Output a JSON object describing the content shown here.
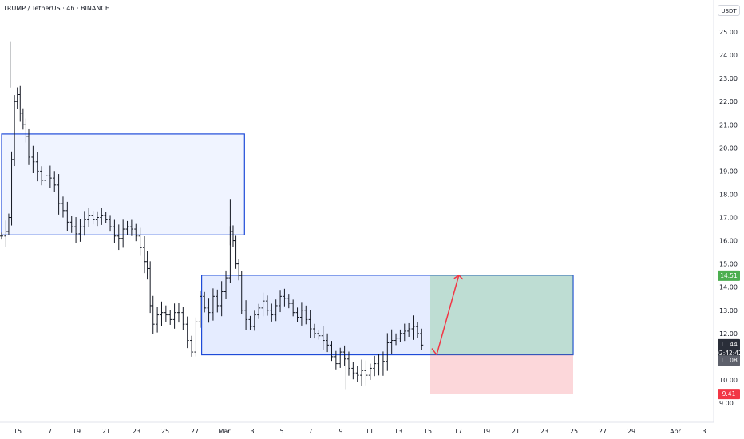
{
  "header": {
    "title": "TRUMP / TetherUS · 4h · BINANCE",
    "currency": "USDT"
  },
  "badges": {
    "target": "14.51",
    "last_price": "11.44",
    "countdown": "02:42:42",
    "entry": "11.08",
    "stop": "9.41"
  },
  "colors": {
    "candle": "#131722",
    "zone_fill": "#2962ff",
    "zone_stroke": "#1e4bd8",
    "target_fill": "#4caf50",
    "stop_fill": "#f23645",
    "arrow": "#f23645",
    "badge_green": "#4caf50",
    "badge_red": "#f23645",
    "badge_dark": "#5d606b"
  },
  "chart_data": {
    "type": "candlestick",
    "title": "TRUMP / TetherUS · 4h · BINANCE",
    "ylim": [
      8.6,
      26.0
    ],
    "y_ticks": [
      "9.00",
      "10.00",
      "11.00",
      "12.00",
      "13.00",
      "14.00",
      "15.00",
      "16.00",
      "17.00",
      "18.00",
      "19.00",
      "20.00",
      "21.00",
      "22.00",
      "23.00",
      "24.00",
      "25.00"
    ],
    "x_ticks": [
      "15",
      "17",
      "19",
      "21",
      "23",
      "25",
      "27",
      "Mar",
      "3",
      "5",
      "7",
      "9",
      "11",
      "13",
      "15",
      "17",
      "19",
      "21",
      "23",
      "25",
      "27",
      "29",
      "Apr",
      "3"
    ],
    "zones": [
      {
        "name": "upper-supply",
        "x_start": "Feb 14",
        "x_end": "Mar 3",
        "low": 16.25,
        "high": 20.6
      },
      {
        "name": "lower-demand",
        "x_start": "Feb 28",
        "x_end": "Mar 26",
        "low": 11.08,
        "high": 14.51
      }
    ],
    "position": {
      "entry": 11.08,
      "target": 14.51,
      "stop": 9.41,
      "x_start": "Mar 16",
      "x_end": "Mar 26"
    },
    "projection": [
      {
        "x": "Mar 16",
        "y": 11.08
      },
      {
        "x": "Mar 18",
        "y": 14.51
      }
    ],
    "ohlc_days": [
      {
        "d": 0,
        "v": 16.2
      },
      {
        "d": 0.3,
        "v": 16.4
      },
      {
        "d": 0.5,
        "v": 17.0
      },
      {
        "d": 0.7,
        "v": 19.5
      },
      {
        "d": 0.9,
        "v": 22.0
      },
      {
        "d": 1.1,
        "v": 22.3
      },
      {
        "d": 1.3,
        "v": 21.5
      },
      {
        "d": 1.5,
        "v": 21.0
      },
      {
        "d": 1.7,
        "v": 20.5
      },
      {
        "d": 1.9,
        "v": 19.6
      },
      {
        "d": 2.2,
        "v": 19.4
      },
      {
        "d": 2.5,
        "v": 19.0
      },
      {
        "d": 2.8,
        "v": 18.6
      },
      {
        "d": 3.1,
        "v": 18.8
      },
      {
        "d": 3.4,
        "v": 18.7
      },
      {
        "d": 3.7,
        "v": 18.4
      },
      {
        "d": 4.0,
        "v": 17.6
      },
      {
        "d": 4.3,
        "v": 17.3
      },
      {
        "d": 4.6,
        "v": 16.8
      },
      {
        "d": 4.9,
        "v": 16.6
      },
      {
        "d": 5.2,
        "v": 16.3
      },
      {
        "d": 5.5,
        "v": 16.6
      },
      {
        "d": 5.8,
        "v": 16.9
      },
      {
        "d": 6.1,
        "v": 17.1
      },
      {
        "d": 6.4,
        "v": 16.9
      },
      {
        "d": 6.7,
        "v": 17.0
      },
      {
        "d": 7.0,
        "v": 17.1
      },
      {
        "d": 7.3,
        "v": 16.9
      },
      {
        "d": 7.6,
        "v": 16.6
      },
      {
        "d": 7.9,
        "v": 16.2
      },
      {
        "d": 8.2,
        "v": 16.1
      },
      {
        "d": 8.5,
        "v": 16.5
      },
      {
        "d": 8.8,
        "v": 16.6
      },
      {
        "d": 9.1,
        "v": 16.5
      },
      {
        "d": 9.4,
        "v": 16.2
      },
      {
        "d": 9.7,
        "v": 15.7
      },
      {
        "d": 10.0,
        "v": 15.1
      },
      {
        "d": 10.2,
        "v": 14.8
      },
      {
        "d": 10.4,
        "v": 13.2
      },
      {
        "d": 10.6,
        "v": 12.4
      },
      {
        "d": 10.9,
        "v": 12.8
      },
      {
        "d": 11.2,
        "v": 12.9
      },
      {
        "d": 11.5,
        "v": 12.8
      },
      {
        "d": 11.8,
        "v": 12.6
      },
      {
        "d": 12.1,
        "v": 12.9
      },
      {
        "d": 12.4,
        "v": 12.9
      },
      {
        "d": 12.7,
        "v": 12.4
      },
      {
        "d": 13.0,
        "v": 11.7
      },
      {
        "d": 13.3,
        "v": 11.2
      },
      {
        "d": 13.6,
        "v": 12.5
      },
      {
        "d": 13.9,
        "v": 13.6
      },
      {
        "d": 14.2,
        "v": 13.1
      },
      {
        "d": 14.5,
        "v": 12.9
      },
      {
        "d": 14.8,
        "v": 13.6
      },
      {
        "d": 15.1,
        "v": 13.2
      },
      {
        "d": 15.4,
        "v": 13.8
      },
      {
        "d": 15.7,
        "v": 14.4
      },
      {
        "d": 16.0,
        "v": 16.4
      },
      {
        "d": 16.2,
        "v": 16.0
      },
      {
        "d": 16.4,
        "v": 15.0
      },
      {
        "d": 16.6,
        "v": 14.5
      },
      {
        "d": 16.8,
        "v": 13.0
      },
      {
        "d": 17.1,
        "v": 12.6
      },
      {
        "d": 17.4,
        "v": 12.3
      },
      {
        "d": 17.7,
        "v": 12.8
      },
      {
        "d": 18.0,
        "v": 13.1
      },
      {
        "d": 18.3,
        "v": 13.4
      },
      {
        "d": 18.6,
        "v": 13.0
      },
      {
        "d": 18.9,
        "v": 12.8
      },
      {
        "d": 19.2,
        "v": 13.2
      },
      {
        "d": 19.5,
        "v": 13.6
      },
      {
        "d": 19.8,
        "v": 13.5
      },
      {
        "d": 20.1,
        "v": 13.3
      },
      {
        "d": 20.4,
        "v": 12.9
      },
      {
        "d": 20.7,
        "v": 12.7
      },
      {
        "d": 21.0,
        "v": 13.0
      },
      {
        "d": 21.3,
        "v": 12.6
      },
      {
        "d": 21.6,
        "v": 12.2
      },
      {
        "d": 21.9,
        "v": 12.0
      },
      {
        "d": 22.2,
        "v": 11.9
      },
      {
        "d": 22.5,
        "v": 11.7
      },
      {
        "d": 22.8,
        "v": 11.5
      },
      {
        "d": 23.1,
        "v": 11.0
      },
      {
        "d": 23.4,
        "v": 10.7
      },
      {
        "d": 23.7,
        "v": 11.2
      },
      {
        "d": 24.0,
        "v": 10.9
      },
      {
        "d": 24.3,
        "v": 10.5
      },
      {
        "d": 24.6,
        "v": 10.3
      },
      {
        "d": 24.9,
        "v": 10.2
      },
      {
        "d": 25.2,
        "v": 10.4
      },
      {
        "d": 25.5,
        "v": 10.2
      },
      {
        "d": 25.8,
        "v": 10.5
      },
      {
        "d": 26.1,
        "v": 10.7
      },
      {
        "d": 26.4,
        "v": 10.6
      },
      {
        "d": 26.7,
        "v": 10.8
      },
      {
        "d": 27.0,
        "v": 11.6
      },
      {
        "d": 27.3,
        "v": 11.7
      },
      {
        "d": 27.6,
        "v": 11.8
      },
      {
        "d": 27.9,
        "v": 12.0
      },
      {
        "d": 28.2,
        "v": 12.1
      },
      {
        "d": 28.5,
        "v": 12.2
      },
      {
        "d": 28.8,
        "v": 12.3
      },
      {
        "d": 29.1,
        "v": 12.0
      },
      {
        "d": 29.4,
        "v": 11.5
      }
    ]
  }
}
